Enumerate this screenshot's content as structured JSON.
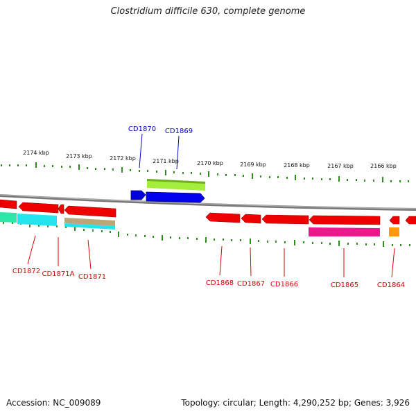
{
  "title": "Clostridium difficile 630, complete genome",
  "footer": {
    "accession": "Accession: NC_009089",
    "summary": "Topology: circular; Length: 4,290,252 bp; Genes: 3,926"
  },
  "colors": {
    "backbone": "#8a8a8a",
    "tick": "#2e8b1e",
    "label_forward": "#0000cc",
    "label_reverse": "#dd0000"
  },
  "scale_labels": [
    "2174 kbp",
    "2173 kbp",
    "2172 kbp",
    "2171 kbp",
    "2170 kbp",
    "2169 kbp",
    "2168 kbp",
    "2167 kbp",
    "2166 kbp"
  ],
  "gene_labels": {
    "forward": [
      "CD1870",
      "CD1869"
    ],
    "reverse": [
      "CD1872",
      "CD1871A",
      "CD1871",
      "CD1868",
      "CD1867",
      "CD1866",
      "CD1865",
      "CD1864"
    ]
  }
}
